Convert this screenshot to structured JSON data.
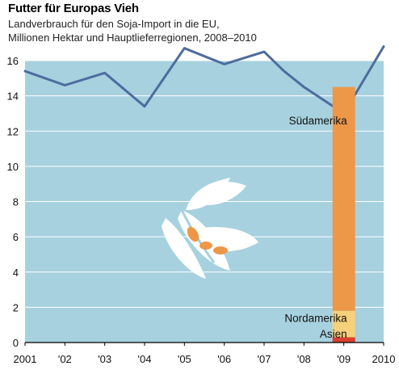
{
  "chart_data": {
    "type": "line",
    "title": "Futter für Europas Vieh",
    "subtitle_lines": [
      "Landverbrauch für den Soja-Import in die EU,",
      "Millionen Hektar und Hauptlieferregionen, 2008–2010"
    ],
    "x_tick_labels": [
      "2001",
      "'02",
      "'03",
      "'04",
      "'05",
      "'06",
      "'07",
      "'08",
      "'09",
      "2010"
    ],
    "xlim": [
      2001,
      2010
    ],
    "ylim": [
      0,
      16
    ],
    "y_ticks": [
      0,
      2,
      4,
      6,
      8,
      10,
      12,
      14,
      16
    ],
    "grid": true,
    "series": [
      {
        "x": [
          2001,
          2002,
          2003,
          2004,
          2005,
          2006,
          2007,
          2007.5,
          2008,
          2009,
          2010
        ],
        "y": [
          15.4,
          14.6,
          15.3,
          13.4,
          16.7,
          15.8,
          16.5,
          15.4,
          14.5,
          13.0,
          16.8
        ]
      }
    ],
    "stacked_bar": {
      "x": 2009,
      "segments": [
        {
          "label": "Asien",
          "value": 0.3,
          "color": "#d9412e"
        },
        {
          "label": "Nordamerika",
          "value": 1.5,
          "color": "#f6d07a"
        },
        {
          "label": "Südamerika",
          "value": 12.7,
          "color": "#ed9748"
        }
      ]
    },
    "colors": {
      "area": "#a7d1df",
      "line": "#4d6c9e",
      "grid": "#ffffff"
    }
  }
}
